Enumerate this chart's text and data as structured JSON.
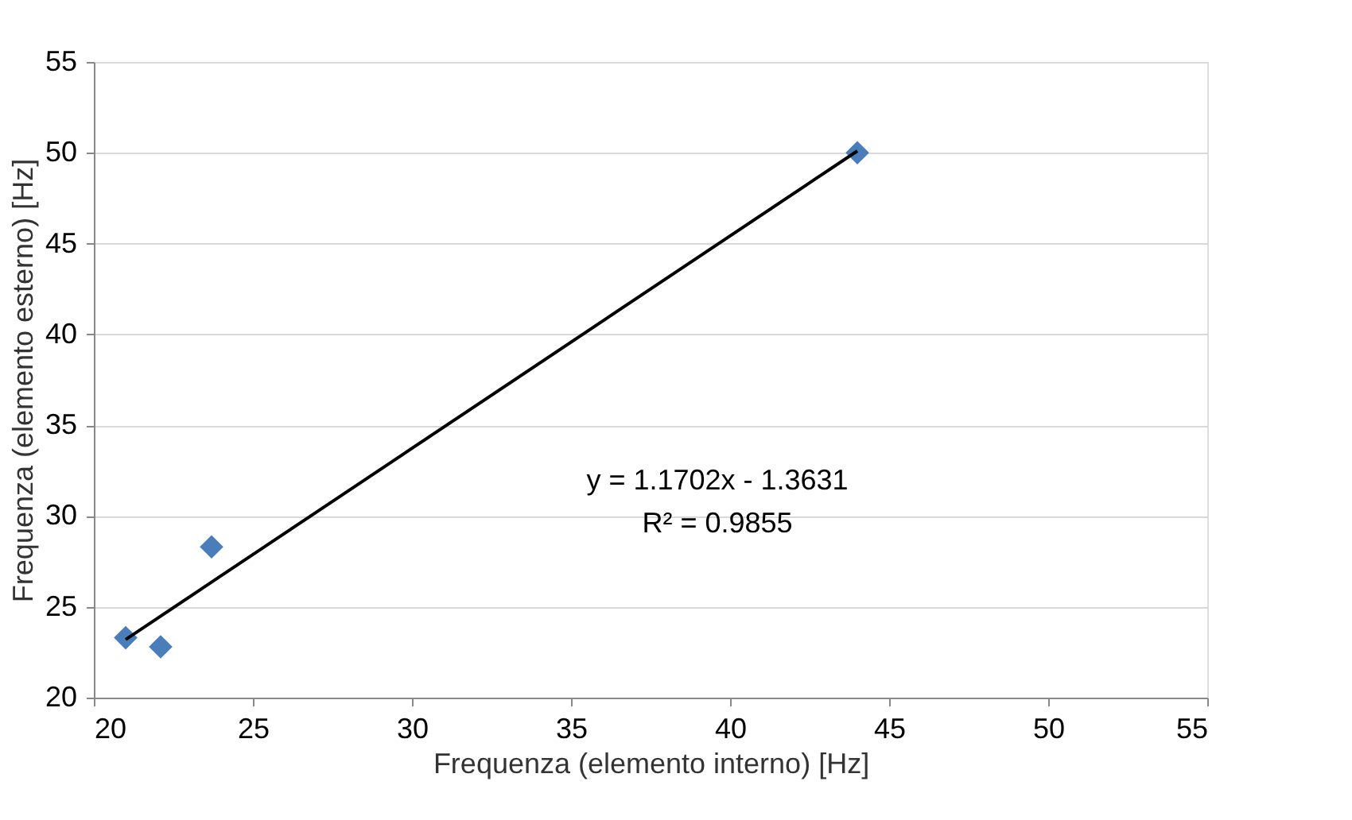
{
  "chart_data": {
    "type": "scatter",
    "xlabel": "Frequenza (elemento interno) [Hz]",
    "ylabel": "Frequenza (elemento esterno) [Hz]",
    "xlim": [
      20,
      55
    ],
    "xticks": [
      20,
      25,
      30,
      35,
      40,
      45,
      50,
      55
    ],
    "ylim": [
      20,
      55
    ],
    "yticks": [
      20,
      25,
      30,
      35,
      40,
      45,
      50,
      55
    ],
    "grid": "y",
    "series": [
      {
        "color": "#4a7ebb",
        "marker": "diamond",
        "x": [
          21.0,
          22.1,
          23.7,
          44.0
        ],
        "values": [
          23.3,
          22.8,
          28.3,
          50.0
        ]
      },
      {
        "type": "line",
        "color": "#000000",
        "marker": "none",
        "line_style": "solid",
        "x": [
          21.0,
          44.0
        ],
        "values": [
          23.2,
          50.1
        ]
      }
    ],
    "annotations": [
      "y = 1.1702x - 1.3631",
      "R² = 0.9855"
    ]
  }
}
